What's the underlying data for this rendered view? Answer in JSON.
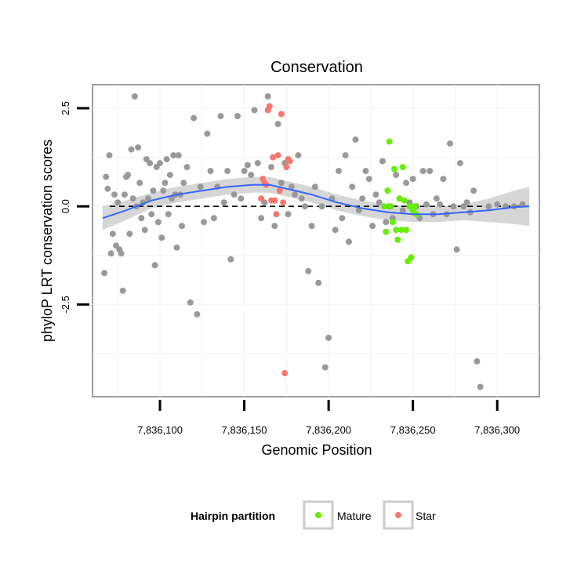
{
  "chart_data": {
    "type": "scatter",
    "title": "Conservation",
    "xlabel": "Genomic Position",
    "ylabel": "phyloP LRT conservation scores",
    "xlim": [
      7836060,
      7836325
    ],
    "ylim": [
      -4.85,
      3.1
    ],
    "x_ticks": [
      {
        "value": 7836100,
        "label": "7,836,100"
      },
      {
        "value": 7836150,
        "label": "7,836,150"
      },
      {
        "value": 7836200,
        "label": "7,836,200"
      },
      {
        "value": 7836250,
        "label": "7,836,250"
      },
      {
        "value": 7836300,
        "label": "7,836,300"
      }
    ],
    "y_ticks": [
      {
        "value": -2.5,
        "label": "-2.5"
      },
      {
        "value": 0.0,
        "label": "0.0"
      },
      {
        "value": 2.5,
        "label": "2.5"
      }
    ],
    "grid": true,
    "reference_line": {
      "y": 0,
      "style": "dashed"
    },
    "colors": {
      "other": "#999999",
      "Mature": "#66ee00",
      "Star": "#f8766d",
      "smooth": "#3366ff",
      "band": "#cccccc"
    },
    "legend": {
      "title": "Hairpin partition",
      "placement": "bottom",
      "entries": [
        {
          "name": "Mature",
          "color": "#66ee00"
        },
        {
          "name": "Star",
          "color": "#f8766d"
        }
      ]
    },
    "series": [
      {
        "group": "other",
        "points": [
          [
            7836067,
            -1.7
          ],
          [
            7836068,
            0.75
          ],
          [
            7836069,
            0.45
          ],
          [
            7836070,
            1.3
          ],
          [
            7836071,
            -1.2
          ],
          [
            7836072,
            -0.7
          ],
          [
            7836073,
            0.3
          ],
          [
            7836074,
            -1.0
          ],
          [
            7836075,
            0.1
          ],
          [
            7836076,
            -1.1
          ],
          [
            7836077,
            -1.2
          ],
          [
            7836078,
            -2.15
          ],
          [
            7836079,
            0.3
          ],
          [
            7836080,
            0.75
          ],
          [
            7836081,
            0.8
          ],
          [
            7836082,
            -0.7
          ],
          [
            7836083,
            1.45
          ],
          [
            7836084,
            0.2
          ],
          [
            7836085,
            2.8
          ],
          [
            7836086,
            0.0
          ],
          [
            7836087,
            1.5
          ],
          [
            7836088,
            0.6
          ],
          [
            7836089,
            -0.3
          ],
          [
            7836090,
            0.1
          ],
          [
            7836091,
            -0.6
          ],
          [
            7836092,
            1.2
          ],
          [
            7836093,
            0.2
          ],
          [
            7836094,
            1.1
          ],
          [
            7836095,
            -0.2
          ],
          [
            7836096,
            0.4
          ],
          [
            7836097,
            -1.5
          ],
          [
            7836098,
            1.0
          ],
          [
            7836099,
            -0.4
          ],
          [
            7836100,
            1.1
          ],
          [
            7836101,
            -0.8
          ],
          [
            7836102,
            0.4
          ],
          [
            7836103,
            0.6
          ],
          [
            7836104,
            1.2
          ],
          [
            7836105,
            -0.2
          ],
          [
            7836106,
            0.8
          ],
          [
            7836107,
            0.2
          ],
          [
            7836108,
            1.3
          ],
          [
            7836109,
            0.3
          ],
          [
            7836110,
            -1.05
          ],
          [
            7836111,
            1.3
          ],
          [
            7836112,
            0.3
          ],
          [
            7836113,
            -0.5
          ],
          [
            7836114,
            0.6
          ],
          [
            7836116,
            1.0
          ],
          [
            7836118,
            -2.45
          ],
          [
            7836120,
            2.25
          ],
          [
            7836122,
            -2.75
          ],
          [
            7836124,
            0.5
          ],
          [
            7836126,
            -0.4
          ],
          [
            7836128,
            1.85
          ],
          [
            7836130,
            0.9
          ],
          [
            7836132,
            -0.3
          ],
          [
            7836134,
            0.5
          ],
          [
            7836136,
            2.3
          ],
          [
            7836138,
            0.1
          ],
          [
            7836140,
            0.9
          ],
          [
            7836142,
            -1.35
          ],
          [
            7836144,
            0.3
          ],
          [
            7836146,
            2.3
          ],
          [
            7836148,
            0.2
          ],
          [
            7836150,
            0.9
          ],
          [
            7836152,
            1.05
          ],
          [
            7836154,
            0.8
          ],
          [
            7836156,
            2.45
          ],
          [
            7836158,
            1.1
          ],
          [
            7836160,
            -0.3
          ],
          [
            7836162,
            0.1
          ],
          [
            7836164,
            2.8
          ],
          [
            7836166,
            1.0
          ],
          [
            7836168,
            -0.5
          ],
          [
            7836170,
            2.1
          ],
          [
            7836172,
            0.6
          ],
          [
            7836174,
            1.1
          ],
          [
            7836176,
            -0.2
          ],
          [
            7836178,
            0.5
          ],
          [
            7836180,
            0.3
          ],
          [
            7836182,
            1.3
          ],
          [
            7836184,
            0.2
          ],
          [
            7836186,
            0.0
          ],
          [
            7836188,
            -1.65
          ],
          [
            7836190,
            -0.5
          ],
          [
            7836192,
            0.5
          ],
          [
            7836194,
            -1.95
          ],
          [
            7836196,
            0.0
          ],
          [
            7836198,
            -4.1
          ],
          [
            7836200,
            -3.35
          ],
          [
            7836202,
            0.2
          ],
          [
            7836204,
            -0.6
          ],
          [
            7836206,
            0.9
          ],
          [
            7836208,
            -0.3
          ],
          [
            7836210,
            1.3
          ],
          [
            7836212,
            -0.9
          ],
          [
            7836214,
            0.5
          ],
          [
            7836216,
            1.7
          ],
          [
            7836218,
            -0.1
          ],
          [
            7836220,
            0.2
          ],
          [
            7836222,
            0.9
          ],
          [
            7836224,
            0.7
          ],
          [
            7836226,
            -0.5
          ],
          [
            7836228,
            0.3
          ],
          [
            7836230,
            0.1
          ],
          [
            7836232,
            1.15
          ],
          [
            7836234,
            -0.4
          ],
          [
            7836236,
            0.0
          ],
          [
            7836238,
            -0.3
          ],
          [
            7836240,
            0.8
          ],
          [
            7836242,
            0.2
          ],
          [
            7836244,
            -0.1
          ],
          [
            7836246,
            0.6
          ],
          [
            7836248,
            0.1
          ],
          [
            7836250,
            0.7
          ],
          [
            7836252,
            0.0
          ],
          [
            7836254,
            -0.3
          ],
          [
            7836256,
            0.9
          ],
          [
            7836258,
            0.05
          ],
          [
            7836260,
            0.9
          ],
          [
            7836262,
            -0.2
          ],
          [
            7836264,
            0.2
          ],
          [
            7836266,
            0.05
          ],
          [
            7836268,
            0.7
          ],
          [
            7836270,
            -0.2
          ],
          [
            7836272,
            1.6
          ],
          [
            7836274,
            0.0
          ],
          [
            7836276,
            -1.1
          ],
          [
            7836278,
            1.1
          ],
          [
            7836280,
            0.0
          ],
          [
            7836282,
            0.1
          ],
          [
            7836284,
            -0.15
          ],
          [
            7836286,
            0.4
          ],
          [
            7836288,
            -3.95
          ],
          [
            7836290,
            -4.6
          ],
          [
            7836295,
            0.0
          ],
          [
            7836300,
            0.05
          ],
          [
            7836305,
            0.0
          ],
          [
            7836310,
            0.0
          ],
          [
            7836315,
            0.05
          ]
        ]
      },
      {
        "group": "Mature",
        "points": [
          [
            7836233,
            0.0
          ],
          [
            7836234,
            -0.65
          ],
          [
            7836235,
            0.4
          ],
          [
            7836236,
            1.65
          ],
          [
            7836237,
            0.0
          ],
          [
            7836238,
            -0.4
          ],
          [
            7836239,
            0.95
          ],
          [
            7836240,
            -0.6
          ],
          [
            7836241,
            -0.85
          ],
          [
            7836242,
            0.2
          ],
          [
            7836243,
            -0.6
          ],
          [
            7836244,
            1.0
          ],
          [
            7836245,
            0.15
          ],
          [
            7836246,
            -0.6
          ],
          [
            7836247,
            -1.4
          ],
          [
            7836248,
            0.0
          ],
          [
            7836249,
            -1.3
          ],
          [
            7836250,
            -0.1
          ],
          [
            7836251,
            0.0
          ],
          [
            7836252,
            -0.2
          ]
        ]
      },
      {
        "group": "Star",
        "points": [
          [
            7836160,
            0.2
          ],
          [
            7836161,
            0.7
          ],
          [
            7836162,
            0.6
          ],
          [
            7836163,
            0.55
          ],
          [
            7836164,
            2.45
          ],
          [
            7836165,
            2.55
          ],
          [
            7836166,
            0.15
          ],
          [
            7836167,
            1.25
          ],
          [
            7836168,
            0.15
          ],
          [
            7836169,
            -0.2
          ],
          [
            7836170,
            1.3
          ],
          [
            7836171,
            0.4
          ],
          [
            7836172,
            2.35
          ],
          [
            7836173,
            0.1
          ],
          [
            7836174,
            -4.25
          ],
          [
            7836175,
            1.0
          ],
          [
            7836176,
            1.2
          ],
          [
            7836177,
            1.15
          ]
        ]
      }
    ],
    "smooth": {
      "method": "loess",
      "x": [
        7836066,
        7836080,
        7836095,
        7836110,
        7836125,
        7836140,
        7836155,
        7836165,
        7836175,
        7836190,
        7836205,
        7836220,
        7836235,
        7836250,
        7836265,
        7836280,
        7836295,
        7836310,
        7836319
      ],
      "y": [
        -0.3,
        -0.1,
        0.15,
        0.3,
        0.4,
        0.5,
        0.55,
        0.55,
        0.45,
        0.3,
        0.1,
        -0.05,
        -0.15,
        -0.2,
        -0.2,
        -0.15,
        -0.1,
        -0.02,
        0.0
      ],
      "lower": [
        -0.6,
        -0.35,
        -0.05,
        0.1,
        0.2,
        0.3,
        0.35,
        0.35,
        0.25,
        0.1,
        -0.1,
        -0.25,
        -0.35,
        -0.4,
        -0.4,
        -0.35,
        -0.4,
        -0.45,
        -0.5
      ],
      "upper": [
        0.0,
        0.15,
        0.35,
        0.5,
        0.6,
        0.7,
        0.75,
        0.75,
        0.65,
        0.5,
        0.3,
        0.15,
        0.05,
        0.0,
        0.0,
        0.05,
        0.2,
        0.4,
        0.5
      ]
    }
  }
}
